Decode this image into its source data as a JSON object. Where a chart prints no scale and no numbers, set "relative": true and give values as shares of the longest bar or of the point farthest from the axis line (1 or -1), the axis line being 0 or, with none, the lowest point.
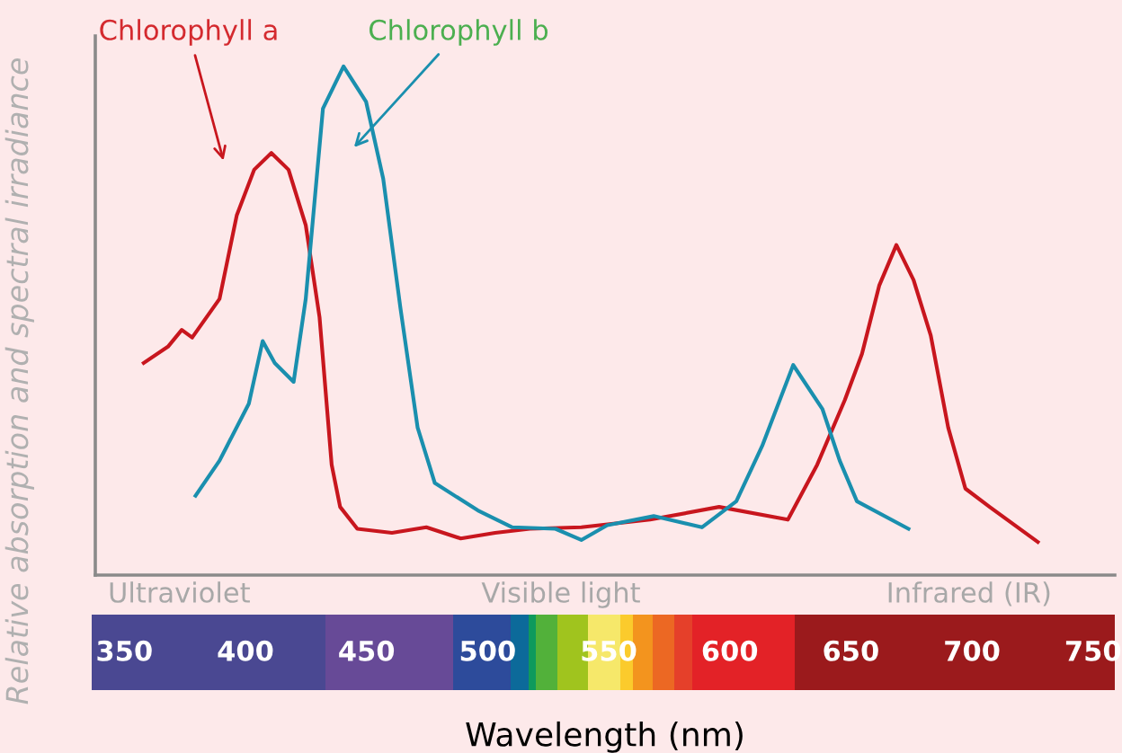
{
  "chart_data": {
    "type": "line",
    "relative": true,
    "ylabel": "Relative absorption and spectral irradiance",
    "xlabel": "Wavelength (nm)",
    "xlim": [
      338,
      759
    ],
    "xticks": [
      350,
      400,
      450,
      500,
      550,
      600,
      650,
      700,
      750
    ],
    "annotations": [
      "Ultraviolet",
      "Visible light",
      "Infrared (IR)"
    ],
    "legend": false,
    "marker": "none",
    "line_style": "solid",
    "series": [
      {
        "name": "Chlorophyll a",
        "color": "#c8161e",
        "x": [
          358,
          368,
          373.7,
          378,
          389.3,
          396.4,
          403.6,
          410.7,
          417.8,
          424.9,
          430.6,
          435.6,
          439.1,
          446.2,
          460.5,
          474.7,
          488.9,
          503.1,
          517.4,
          538.7,
          567.1,
          595.6,
          624,
          636.1,
          647.5,
          654.6,
          661.7,
          668.8,
          675.9,
          683,
          690.2,
          697.3,
          707.3,
          727.2
        ],
        "values": [
          0.417,
          0.449,
          0.482,
          0.467,
          0.543,
          0.707,
          0.797,
          0.83,
          0.797,
          0.688,
          0.507,
          0.217,
          0.134,
          0.091,
          0.083,
          0.094,
          0.072,
          0.083,
          0.091,
          0.094,
          0.109,
          0.134,
          0.109,
          0.217,
          0.344,
          0.435,
          0.569,
          0.649,
          0.58,
          0.471,
          0.29,
          0.17,
          0.134,
          0.065
        ]
      },
      {
        "name": "Chlorophyll b",
        "color": "#1a8fae",
        "x": [
          379.4,
          389.3,
          401.4,
          407.1,
          412.1,
          419.9,
          424.9,
          432,
          440.5,
          449.8,
          456.9,
          464,
          471.1,
          478.2,
          496,
          510.2,
          528,
          538.7,
          549.4,
          568.6,
          588.5,
          602.7,
          613.4,
          626.2,
          638.3,
          645.4,
          652.5,
          673.8
        ],
        "values": [
          0.156,
          0.225,
          0.337,
          0.46,
          0.417,
          0.38,
          0.543,
          0.917,
          1.0,
          0.931,
          0.779,
          0.525,
          0.29,
          0.181,
          0.127,
          0.094,
          0.091,
          0.069,
          0.098,
          0.116,
          0.094,
          0.145,
          0.254,
          0.413,
          0.326,
          0.225,
          0.145,
          0.091
        ]
      }
    ]
  }
}
